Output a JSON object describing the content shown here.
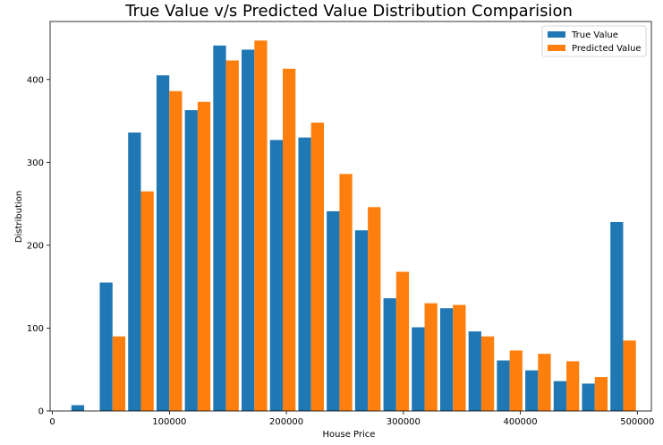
{
  "chart_data": {
    "type": "bar",
    "title": "True Value v/s  Predicted Value Distribution Comparision",
    "xlabel": "House Price",
    "ylabel": "Distribution",
    "xlim": [
      -2000,
      512000
    ],
    "ylim": [
      0,
      470
    ],
    "xticks": [
      0,
      100000,
      200000,
      300000,
      400000,
      500000
    ],
    "xtick_labels": [
      "0",
      "100000",
      "200000",
      "300000",
      "400000",
      "500000"
    ],
    "yticks": [
      0,
      100,
      200,
      300,
      400
    ],
    "ytick_labels": [
      "0",
      "100",
      "200",
      "300",
      "400"
    ],
    "grid": false,
    "legend_position": "top-right",
    "bin_edges": [
      14999,
      39249,
      63499,
      87749,
      111999,
      136249,
      160499,
      184749,
      208999,
      233249,
      257499,
      281749,
      305999,
      330249,
      354499,
      378749,
      402999,
      427249,
      451499,
      475749,
      500001
    ],
    "series": [
      {
        "name": "True Value",
        "color": "#1f77b4",
        "values": [
          7,
          155,
          336,
          405,
          363,
          441,
          436,
          327,
          330,
          241,
          218,
          136,
          101,
          124,
          96,
          61,
          49,
          36,
          33,
          228
        ]
      },
      {
        "name": "Predicted Value",
        "color": "#ff7f0e",
        "values": [
          0,
          90,
          265,
          386,
          373,
          423,
          447,
          413,
          348,
          286,
          246,
          168,
          130,
          128,
          90,
          73,
          69,
          60,
          41,
          85
        ]
      }
    ]
  }
}
